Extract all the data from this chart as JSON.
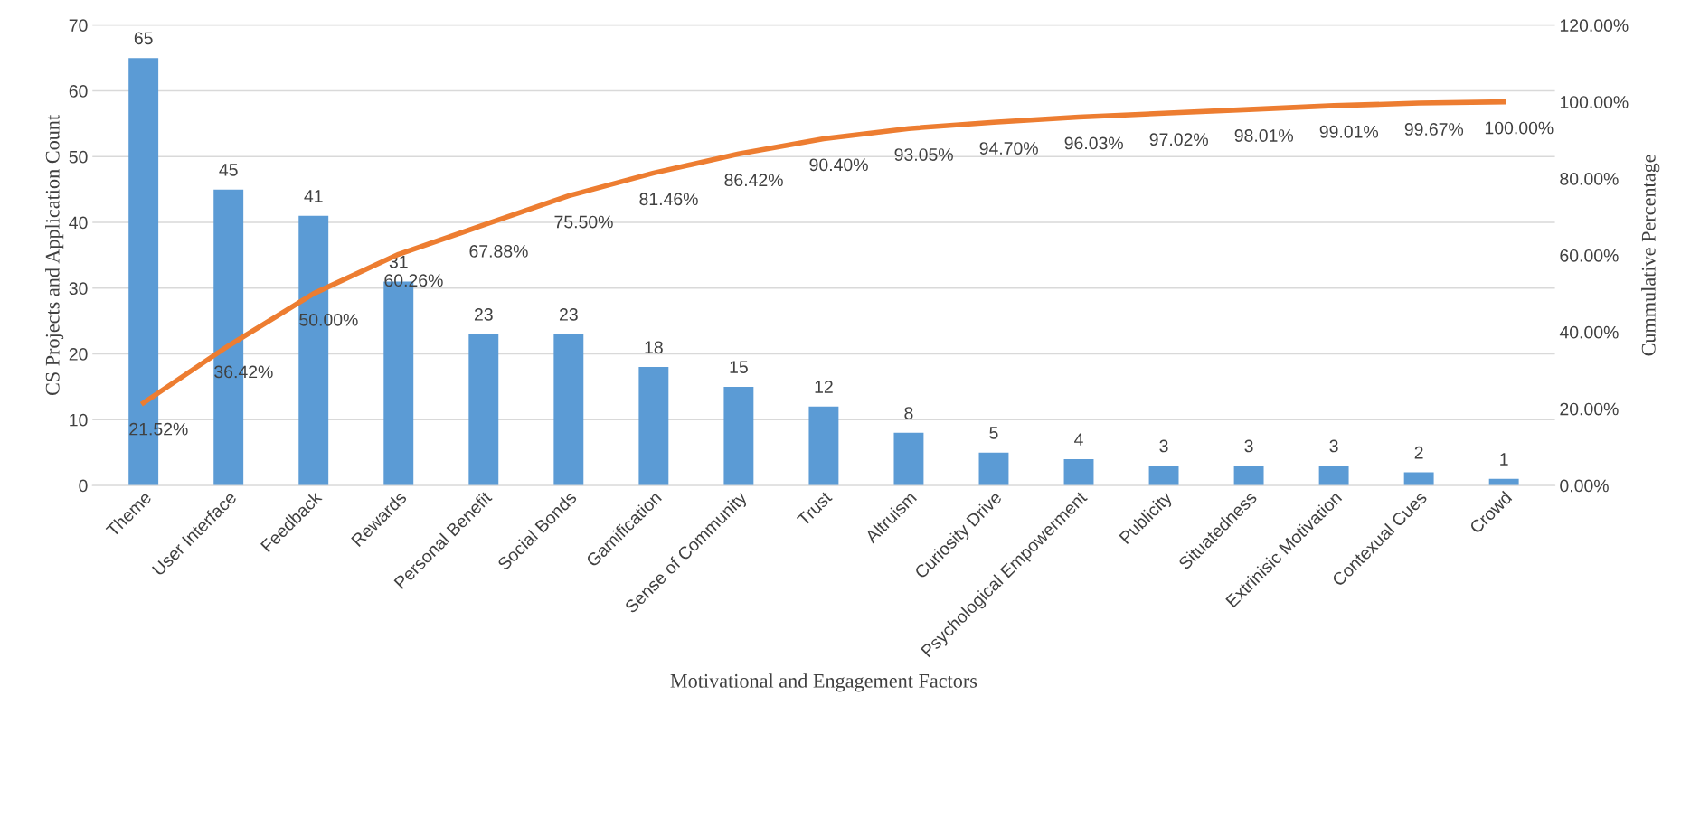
{
  "chart_data": {
    "type": "bar",
    "xlabel": "Motivational and Engagement Factors",
    "ylabel": "CS Projects and Application Count",
    "y2label": "Cummulative Percentage",
    "categories": [
      "Theme",
      "User Interface",
      "Feedback",
      "Rewards",
      "Personal Benefit",
      "Social Bonds",
      "Gamification",
      "Sense of Community",
      "Trust",
      "Altruism",
      "Curiosity Drive",
      "Psychological Empowerment",
      "Publicity",
      "Situatedness",
      "Extrinisic Motivation",
      "Contexual Cues",
      "Crowd"
    ],
    "series": [
      {
        "color": "#5b9bd5",
        "values": [
          65,
          45,
          41,
          31,
          23,
          23,
          18,
          15,
          12,
          8,
          5,
          4,
          3,
          3,
          3,
          2,
          1
        ],
        "value_labels": [
          "65",
          "45",
          "41",
          "31",
          "23",
          "23",
          "18",
          "15",
          "12",
          "8",
          "5",
          "4",
          "3",
          "3",
          "3",
          "2",
          "1"
        ]
      },
      {
        "type": "line",
        "axis": "y2",
        "color": "#ed7d31",
        "values": [
          21.52,
          36.42,
          50.0,
          60.26,
          67.88,
          75.5,
          81.46,
          86.42,
          90.4,
          93.05,
          94.7,
          96.03,
          97.02,
          98.01,
          99.01,
          99.67,
          100.0
        ],
        "value_labels": [
          "21.52%",
          "36.42%",
          "50.00%",
          "60.26%",
          "67.88%",
          "75.50%",
          "81.46%",
          "86.42%",
          "90.40%",
          "93.05%",
          "94.70%",
          "96.03%",
          "97.02%",
          "98.01%",
          "99.01%",
          "99.67%",
          "100.00%"
        ]
      }
    ],
    "ylim": [
      0,
      70
    ],
    "yticks": [
      0,
      10,
      20,
      30,
      40,
      50,
      60,
      70
    ],
    "y2lim": [
      0,
      120
    ],
    "y2ticks": [
      {
        "value": 0,
        "label": "0.00%"
      },
      {
        "value": 20,
        "label": "20.00%"
      },
      {
        "value": 40,
        "label": "40.00%"
      },
      {
        "value": 60,
        "label": "60.00%"
      },
      {
        "value": 80,
        "label": "80.00%"
      },
      {
        "value": 100,
        "label": "100.00%"
      },
      {
        "value": 120,
        "label": "120.00%"
      }
    ],
    "grid": "y",
    "legend": false,
    "marker": "none",
    "line_style": "solid"
  }
}
